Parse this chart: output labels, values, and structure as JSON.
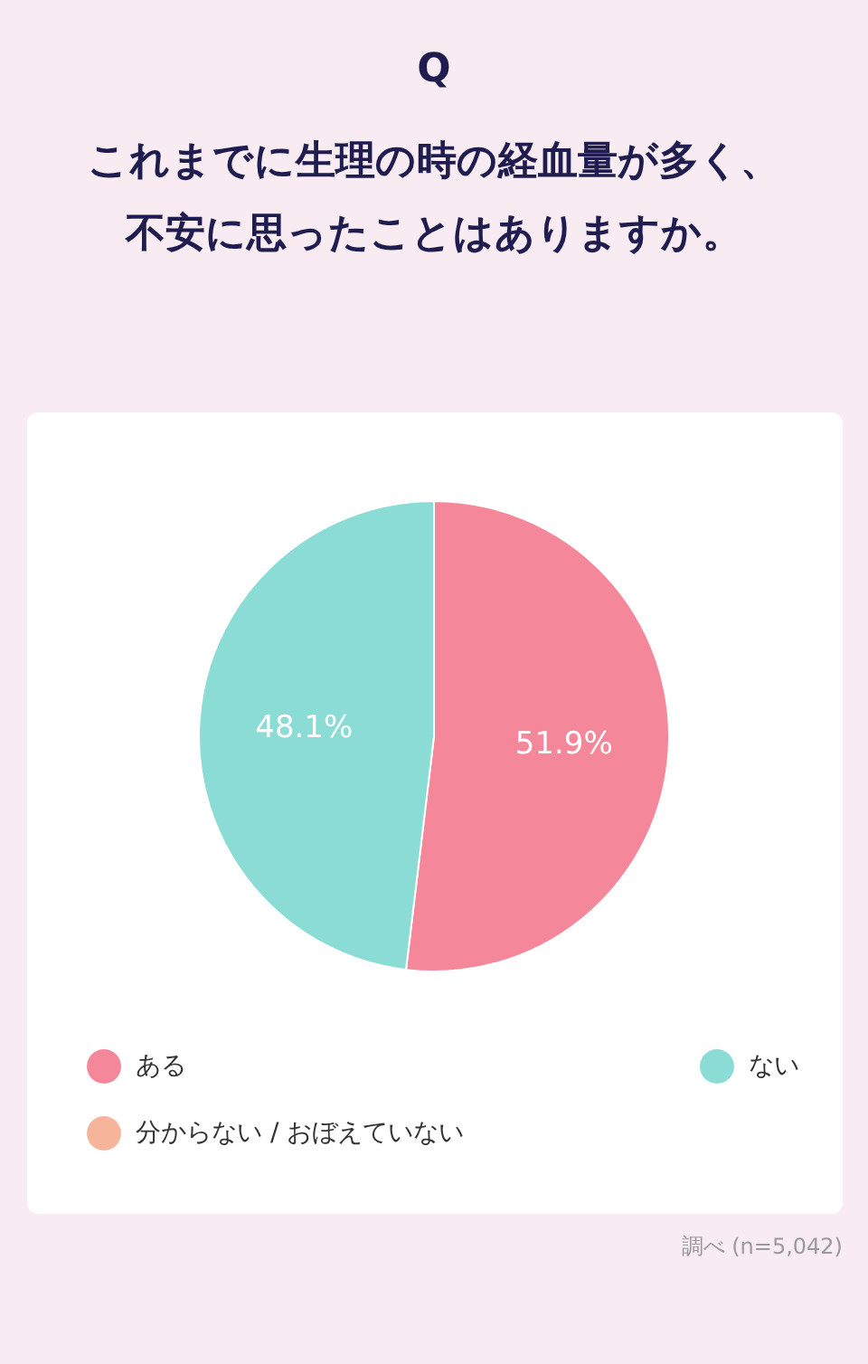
{
  "chart_data": {
    "type": "pie",
    "title": "Q",
    "subtitle": "これまでに生理の時の経血量が多く、不安に思ったことはありますか。",
    "categories": [
      "ある",
      "ない",
      "分からない / おぼえていない"
    ],
    "values": [
      51.9,
      48.1,
      0
    ],
    "colors": [
      "#f4879a",
      "#8cdcd6",
      "#f6b59a"
    ],
    "value_labels": [
      "51.9%",
      "48.1%",
      null
    ],
    "legend": "bottom",
    "annotations": [
      "調べ (n=5,042)"
    ]
  }
}
